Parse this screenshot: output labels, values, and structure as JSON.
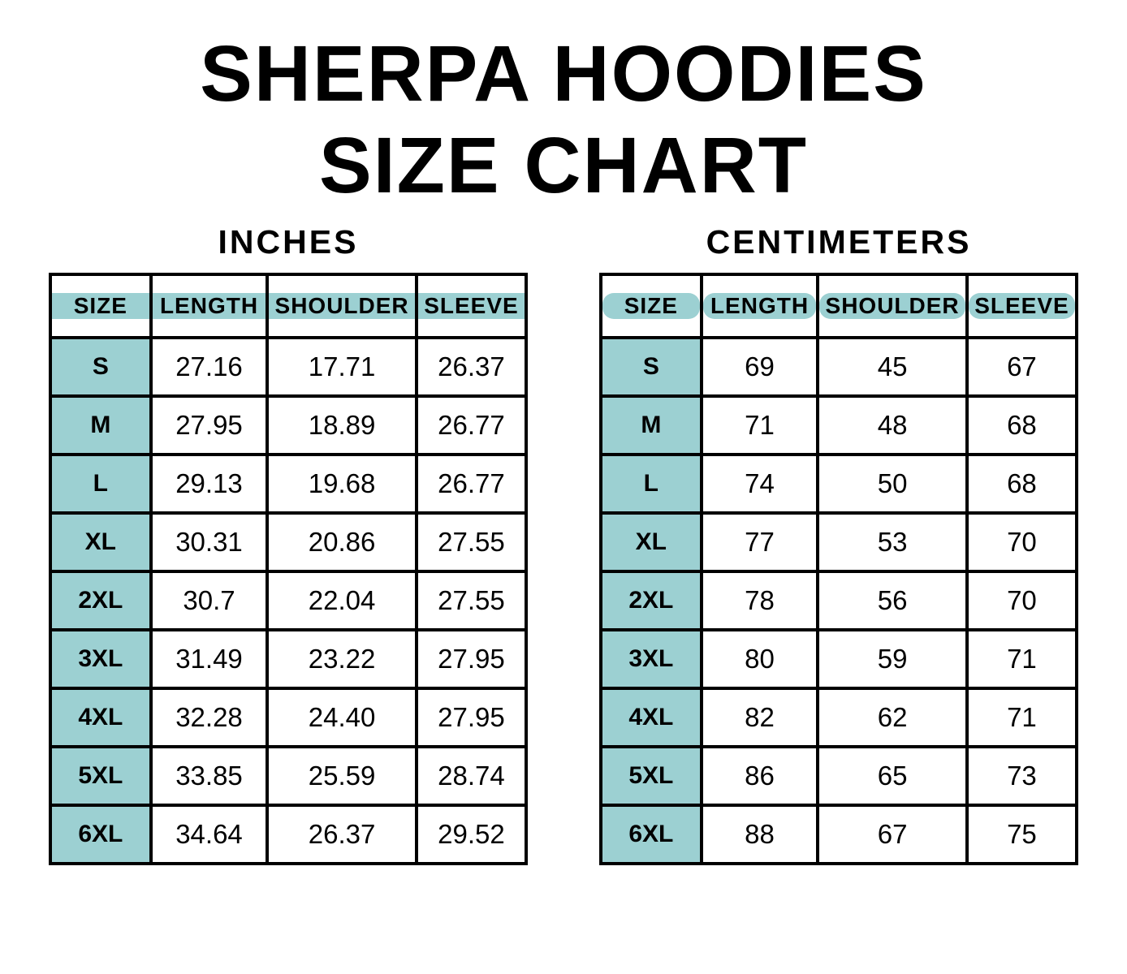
{
  "title": {
    "line1": "SHERPA HOODIES",
    "line2": "SIZE CHART"
  },
  "colors": {
    "header_bg": "#9cd0d2",
    "border": "#000000",
    "text": "#000000",
    "background": "#ffffff"
  },
  "chart_data": [
    {
      "type": "table",
      "title": "INCHES",
      "columns": [
        "SIZE",
        "LENGTH",
        "SHOULDER",
        "SLEEVE"
      ],
      "rows": [
        [
          "S",
          "27.16",
          "17.71",
          "26.37"
        ],
        [
          "M",
          "27.95",
          "18.89",
          "26.77"
        ],
        [
          "L",
          "29.13",
          "19.68",
          "26.77"
        ],
        [
          "XL",
          "30.31",
          "20.86",
          "27.55"
        ],
        [
          "2XL",
          "30.7",
          "22.04",
          "27.55"
        ],
        [
          "3XL",
          "31.49",
          "23.22",
          "27.95"
        ],
        [
          "4XL",
          "32.28",
          "24.40",
          "27.95"
        ],
        [
          "5XL",
          "33.85",
          "25.59",
          "28.74"
        ],
        [
          "6XL",
          "34.64",
          "26.37",
          "29.52"
        ]
      ]
    },
    {
      "type": "table",
      "title": "CENTIMETERS",
      "columns": [
        "SIZE",
        "LENGTH",
        "SHOULDER",
        "SLEEVE"
      ],
      "rows": [
        [
          "S",
          "69",
          "45",
          "67"
        ],
        [
          "M",
          "71",
          "48",
          "68"
        ],
        [
          "L",
          "74",
          "50",
          "68"
        ],
        [
          "XL",
          "77",
          "53",
          "70"
        ],
        [
          "2XL",
          "78",
          "56",
          "70"
        ],
        [
          "3XL",
          "80",
          "59",
          "71"
        ],
        [
          "4XL",
          "82",
          "62",
          "71"
        ],
        [
          "5XL",
          "86",
          "65",
          "73"
        ],
        [
          "6XL",
          "88",
          "67",
          "75"
        ]
      ]
    }
  ]
}
